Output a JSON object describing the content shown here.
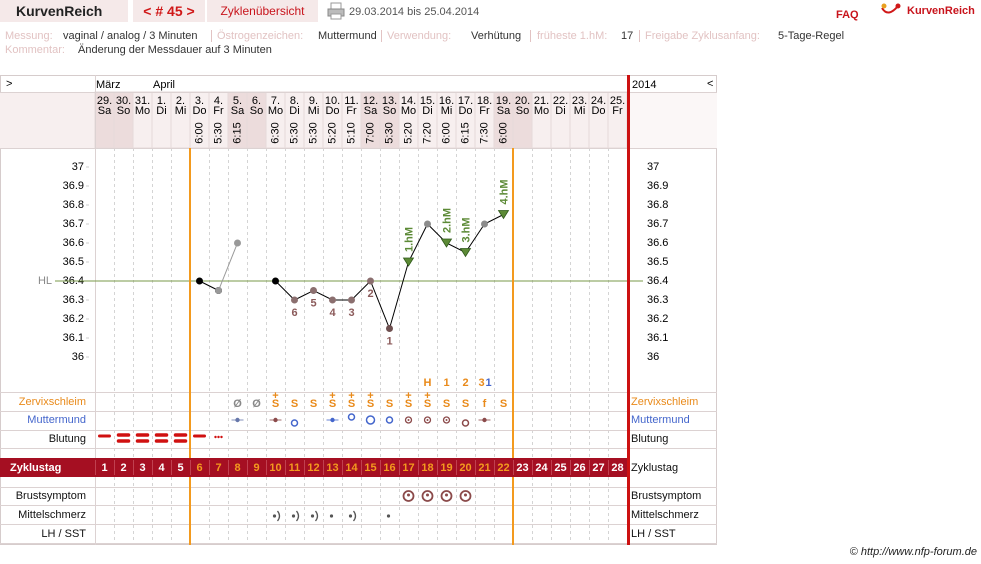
{
  "header": {
    "app_title": "KurvenReich",
    "cycle_nav": "< # 45 >",
    "tab": "Zyklenübersicht",
    "date_range": "29.03.2014 bis 25.04.2014",
    "faq": "FAQ",
    "logo_text": "KurvenReich"
  },
  "settings": [
    {
      "label": "Messung:",
      "value": "vaginal / analog / 3 Minuten"
    },
    {
      "label": "Östrogenzeichen:",
      "value": "Muttermund"
    },
    {
      "label": "Verwendung:",
      "value": "Verhütung"
    },
    {
      "label": "früheste 1.hM:",
      "value": 17
    },
    {
      "label": "Freigabe Zyklusanfang:",
      "value": "5-Tage-Regel"
    }
  ],
  "comment": {
    "label": "Kommentar:",
    "value": "Änderung der Messdauer auf 3 Minuten"
  },
  "footer": "© http://www.nfp-forum.de",
  "chart_data": {
    "type": "line",
    "nav_left": ">",
    "nav_right": "<",
    "year": 2014,
    "months": [
      "März",
      null,
      null,
      "April",
      null,
      null,
      null,
      null,
      null,
      null,
      null,
      null,
      null,
      null,
      null,
      null,
      null,
      null,
      null,
      null,
      null,
      null,
      null,
      null,
      null,
      null,
      null,
      null
    ],
    "categories": [
      "29.",
      "30.",
      "31.",
      "1.",
      "2.",
      "3.",
      "4.",
      "5.",
      "6.",
      "7.",
      "8.",
      "9.",
      "10.",
      "11.",
      "12.",
      "13.",
      "14.",
      "15.",
      "16.",
      "17.",
      "18.",
      "19.",
      "20.",
      "21.",
      "22.",
      "23.",
      "24.",
      "25."
    ],
    "weekdays": [
      "Sa",
      "So",
      "Mo",
      "Di",
      "Mi",
      "Do",
      "Fr",
      "Sa",
      "So",
      "Mo",
      "Di",
      "Mi",
      "Do",
      "Fr",
      "Sa",
      "So",
      "Mo",
      "Di",
      "Mi",
      "Do",
      "Fr",
      "Sa",
      "So",
      "Mo",
      "Di",
      "Mi",
      "Do",
      "Fr"
    ],
    "times": [
      null,
      null,
      null,
      null,
      null,
      "6:00",
      "5:30",
      "6:15",
      null,
      "6:30",
      "5:30",
      "5:30",
      "5:20",
      "5:10",
      "7:00",
      "5:30",
      "5:20",
      "7:20",
      "6:00",
      "6:15",
      "7:30",
      "6:00",
      null,
      null,
      null,
      null,
      null,
      null
    ],
    "ylim": [
      35.9,
      37.1
    ],
    "yticks": [
      36,
      36.1,
      36.2,
      36.3,
      36.4,
      36.5,
      36.6,
      36.7,
      36.8,
      36.9,
      37
    ],
    "hl": {
      "label": "HL",
      "value": 36.4,
      "color": "#7a9a4a"
    },
    "series": [
      {
        "color": "#000000",
        "values": [
          null,
          null,
          null,
          null,
          null,
          36.4,
          36.35,
          null,
          null,
          36.4,
          36.3,
          36.35,
          36.3,
          36.3,
          36.4,
          36.15,
          36.5,
          36.7,
          36.6,
          36.55,
          36.7,
          36.75,
          null,
          null,
          null,
          null,
          null,
          null
        ],
        "point_colors": [
          null,
          null,
          null,
          null,
          null,
          "#000000",
          "#000000",
          null,
          null,
          "#000000",
          "#8b6f6f",
          "#8b6f6f",
          "#8b6f6f",
          "#8b6f6f",
          "#8b6f6f",
          "#6f5050",
          "#5c8a36",
          "#8c8c8c",
          "#5c8a36",
          "#5c8a36",
          "#8c8c8c",
          "#5c8a36",
          null,
          null,
          null,
          null,
          null,
          null
        ]
      },
      {
        "color": "#999999",
        "values": [
          null,
          null,
          null,
          null,
          null,
          null,
          36.35,
          36.6,
          null,
          null,
          null,
          null,
          null,
          null,
          null,
          null,
          null,
          null,
          null,
          null,
          null,
          null,
          null,
          null,
          null,
          null,
          null,
          null
        ]
      }
    ],
    "below_labels": [
      null,
      null,
      null,
      null,
      null,
      null,
      null,
      null,
      null,
      null,
      6,
      5,
      4,
      3,
      2,
      1,
      null,
      null,
      null,
      null,
      null,
      null,
      null,
      null,
      null,
      null,
      null,
      null
    ],
    "hm_labels": [
      null,
      null,
      null,
      null,
      null,
      null,
      null,
      null,
      null,
      null,
      null,
      null,
      null,
      null,
      null,
      null,
      "1.hM",
      null,
      "2.hM",
      "3.hM",
      null,
      "4.hM",
      null,
      null,
      null,
      null,
      null,
      null
    ],
    "phase_boundaries": [
      5,
      22
    ],
    "peak_counts": [
      null,
      null,
      null,
      null,
      null,
      null,
      null,
      null,
      null,
      null,
      null,
      null,
      null,
      null,
      null,
      null,
      null,
      "H",
      1,
      2,
      3,
      null,
      null,
      null,
      null,
      null,
      null,
      null
    ],
    "cervix_counts": [
      null,
      null,
      null,
      null,
      null,
      null,
      null,
      null,
      null,
      null,
      null,
      null,
      null,
      null,
      null,
      null,
      null,
      null,
      null,
      null,
      1,
      null,
      null,
      null,
      null,
      null,
      null,
      null
    ],
    "mucus": [
      null,
      null,
      null,
      null,
      null,
      null,
      null,
      "Ø",
      "Ø",
      "S",
      "S",
      "S",
      "S",
      "S",
      "S",
      "S",
      "S",
      "S",
      "S",
      "S",
      "f",
      "S",
      null,
      null,
      null,
      null,
      null,
      null
    ],
    "mucus_plus": [
      null,
      null,
      null,
      null,
      null,
      null,
      null,
      null,
      null,
      "+",
      null,
      null,
      "+",
      "+",
      "+",
      null,
      "+",
      "+",
      null,
      null,
      null,
      null,
      null,
      null,
      null,
      null,
      null,
      null
    ],
    "cycle_days": [
      1,
      2,
      3,
      4,
      5,
      6,
      7,
      8,
      9,
      10,
      11,
      12,
      13,
      14,
      15,
      16,
      17,
      18,
      19,
      20,
      21,
      22,
      23,
      24,
      25,
      26,
      27,
      28
    ],
    "rows": {
      "mucus": "Zervixschleim",
      "cervix": "Muttermund",
      "bleeding": "Blutung",
      "cycle_day": "Zyklustag",
      "breast": "Brustsymptom",
      "mittelschmerz": "Mittelschmerz",
      "lh": "LH / SST"
    }
  }
}
